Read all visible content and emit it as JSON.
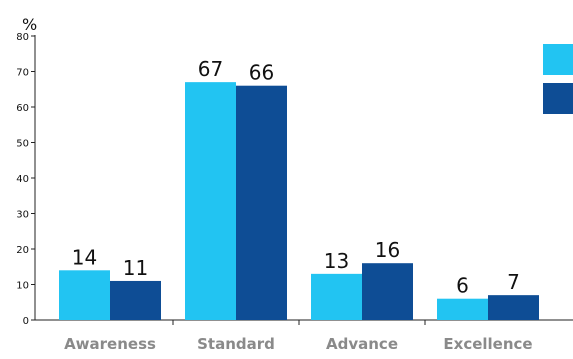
{
  "chart_data": {
    "type": "bar",
    "ylabel": "%",
    "ylim": [
      0,
      80
    ],
    "yticks": [
      "0",
      "10",
      "20",
      "30",
      "40",
      "50",
      "60",
      "70",
      "80"
    ],
    "categories": [
      "Awareness",
      "Standard",
      "Advance",
      "Excellence"
    ],
    "series": [
      {
        "values": [
          14,
          67,
          13,
          6
        ],
        "labels": [
          "14",
          "67",
          "13",
          "6"
        ],
        "color": "#22c4f2"
      },
      {
        "values": [
          11,
          66,
          16,
          7
        ],
        "labels": [
          "11",
          "66",
          "16",
          "7"
        ],
        "color": "#0e4d95"
      }
    ],
    "legend": "top-right",
    "grid": false
  }
}
